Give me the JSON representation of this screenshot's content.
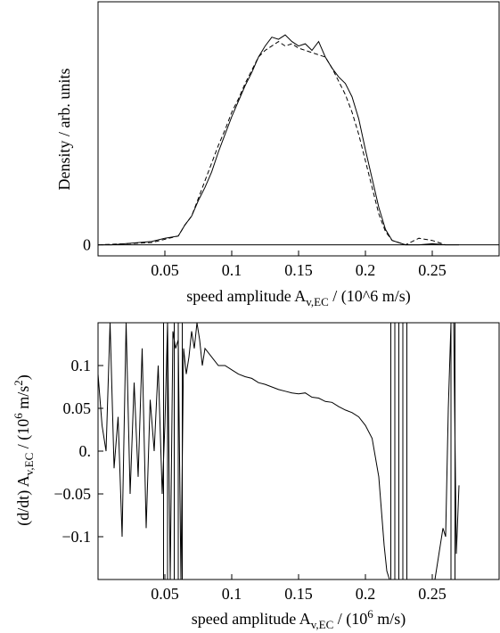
{
  "chart_data": [
    {
      "id": "top",
      "type": "line",
      "xlabel": "speed amplitude A",
      "xlabel_sub": "v,EC",
      "xlabel_tail": " / (10^6 m/s)",
      "ylabel": "Density / arb. units",
      "xlim": [
        0.0,
        0.3
      ],
      "ylim": [
        -0.05,
        1.1
      ],
      "xticks": [
        0.05,
        0.1,
        0.15,
        0.2,
        0.25
      ],
      "xtick_labels": [
        "0.05",
        "0.1",
        "0.15",
        "0.2",
        "0.25"
      ],
      "yticks": [
        0
      ],
      "ytick_labels": [
        "0"
      ],
      "zero_line": true,
      "series": [
        {
          "style": "solid",
          "x": [
            0.0,
            0.01,
            0.02,
            0.03,
            0.04,
            0.05,
            0.06,
            0.065,
            0.07,
            0.075,
            0.08,
            0.085,
            0.09,
            0.095,
            0.1,
            0.105,
            0.11,
            0.115,
            0.12,
            0.125,
            0.13,
            0.135,
            0.14,
            0.145,
            0.15,
            0.155,
            0.16,
            0.165,
            0.17,
            0.175,
            0.18,
            0.185,
            0.19,
            0.195,
            0.2,
            0.205,
            0.21,
            0.215,
            0.22,
            0.225,
            0.23,
            0.24,
            0.25,
            0.26,
            0.27
          ],
          "y": [
            0.0,
            0.0,
            0.005,
            0.01,
            0.015,
            0.03,
            0.04,
            0.09,
            0.13,
            0.2,
            0.26,
            0.33,
            0.42,
            0.5,
            0.58,
            0.65,
            0.72,
            0.78,
            0.85,
            0.9,
            0.94,
            0.93,
            0.95,
            0.92,
            0.9,
            0.91,
            0.88,
            0.92,
            0.85,
            0.8,
            0.76,
            0.73,
            0.67,
            0.57,
            0.43,
            0.3,
            0.17,
            0.07,
            0.02,
            0.01,
            0.0,
            0.0,
            0.005,
            0.0,
            0.0
          ]
        },
        {
          "style": "dashed",
          "x": [
            0.0,
            0.02,
            0.04,
            0.06,
            0.065,
            0.07,
            0.075,
            0.08,
            0.085,
            0.09,
            0.095,
            0.1,
            0.105,
            0.11,
            0.115,
            0.12,
            0.125,
            0.13,
            0.135,
            0.14,
            0.145,
            0.15,
            0.155,
            0.16,
            0.165,
            0.17,
            0.175,
            0.18,
            0.185,
            0.19,
            0.195,
            0.2,
            0.205,
            0.21,
            0.215,
            0.22,
            0.23,
            0.24,
            0.25,
            0.26
          ],
          "y": [
            0.0,
            0.005,
            0.01,
            0.04,
            0.09,
            0.13,
            0.21,
            0.29,
            0.37,
            0.45,
            0.52,
            0.6,
            0.66,
            0.73,
            0.79,
            0.85,
            0.88,
            0.9,
            0.92,
            0.9,
            0.91,
            0.89,
            0.88,
            0.87,
            0.86,
            0.85,
            0.8,
            0.74,
            0.68,
            0.6,
            0.5,
            0.38,
            0.26,
            0.14,
            0.06,
            0.02,
            0.0,
            0.03,
            0.02,
            0.0
          ]
        }
      ]
    },
    {
      "id": "bottom",
      "type": "line",
      "xlabel": "speed amplitude A",
      "xlabel_sub": "v,EC",
      "xlabel_tail": " / (10",
      "xlabel_sup": "6",
      "xlabel_end": " m/s)",
      "ylabel": "(d/dt) A",
      "ylabel_sub": "v,EC",
      "ylabel_tail": " / (10",
      "ylabel_sup": "6",
      "ylabel_mid": " m/s",
      "ylabel_sup2": "2",
      "ylabel_end": ")",
      "xlim": [
        0.0,
        0.3
      ],
      "ylim": [
        -0.15,
        0.15
      ],
      "xticks": [
        0.05,
        0.1,
        0.15,
        0.2,
        0.25
      ],
      "xtick_labels": [
        "0.05",
        "0.1",
        "0.15",
        "0.2",
        "0.25"
      ],
      "yticks": [
        -0.1,
        -0.05,
        0.0,
        0.05,
        0.1
      ],
      "ytick_labels": [
        "−0.1",
        "−0.05",
        "0.",
        "0.05",
        "0.1"
      ],
      "series": [
        {
          "style": "solid",
          "x": [
            0.0,
            0.003,
            0.006,
            0.009,
            0.012,
            0.015,
            0.018,
            0.021,
            0.024,
            0.027,
            0.03,
            0.033,
            0.036,
            0.039,
            0.042,
            0.045,
            0.048,
            0.05,
            0.052,
            0.054,
            0.056,
            0.058,
            0.06,
            0.062,
            0.064,
            0.066,
            0.068,
            0.07,
            0.072,
            0.074,
            0.076,
            0.078,
            0.08,
            0.085,
            0.09,
            0.095,
            0.1,
            0.105,
            0.11,
            0.115,
            0.12,
            0.125,
            0.13,
            0.135,
            0.14,
            0.145,
            0.15,
            0.155,
            0.16,
            0.165,
            0.17,
            0.175,
            0.18,
            0.185,
            0.19,
            0.195,
            0.2,
            0.205,
            0.21,
            0.212,
            0.214,
            0.216,
            0.218
          ],
          "y": [
            0.09,
            0.03,
            0.0,
            0.15,
            -0.02,
            0.04,
            -0.1,
            0.15,
            -0.05,
            0.08,
            -0.03,
            0.12,
            -0.09,
            0.06,
            0.0,
            0.1,
            -0.05,
            0.03,
            0.15,
            -0.15,
            0.14,
            0.12,
            0.13,
            -0.15,
            0.12,
            0.09,
            0.11,
            0.14,
            0.12,
            0.15,
            0.13,
            0.1,
            0.12,
            0.11,
            0.1,
            0.1,
            0.095,
            0.09,
            0.087,
            0.085,
            0.08,
            0.078,
            0.075,
            0.072,
            0.07,
            0.068,
            0.067,
            0.068,
            0.063,
            0.062,
            0.058,
            0.057,
            0.052,
            0.048,
            0.045,
            0.04,
            0.03,
            0.015,
            -0.03,
            -0.07,
            -0.11,
            -0.14,
            -0.15
          ]
        },
        {
          "style": "solid",
          "x": [
            0.252,
            0.254,
            0.256,
            0.258,
            0.26,
            0.262,
            0.264,
            0.266,
            0.268,
            0.27
          ],
          "y": [
            -0.15,
            -0.13,
            -0.11,
            -0.09,
            -0.1,
            0.05,
            0.15,
            0.15,
            -0.12,
            -0.04
          ]
        }
      ],
      "vertical_spikes_x": [
        0.049,
        0.052,
        0.057,
        0.06,
        0.063,
        0.219,
        0.222,
        0.225,
        0.228,
        0.231,
        0.264,
        0.267
      ]
    }
  ]
}
